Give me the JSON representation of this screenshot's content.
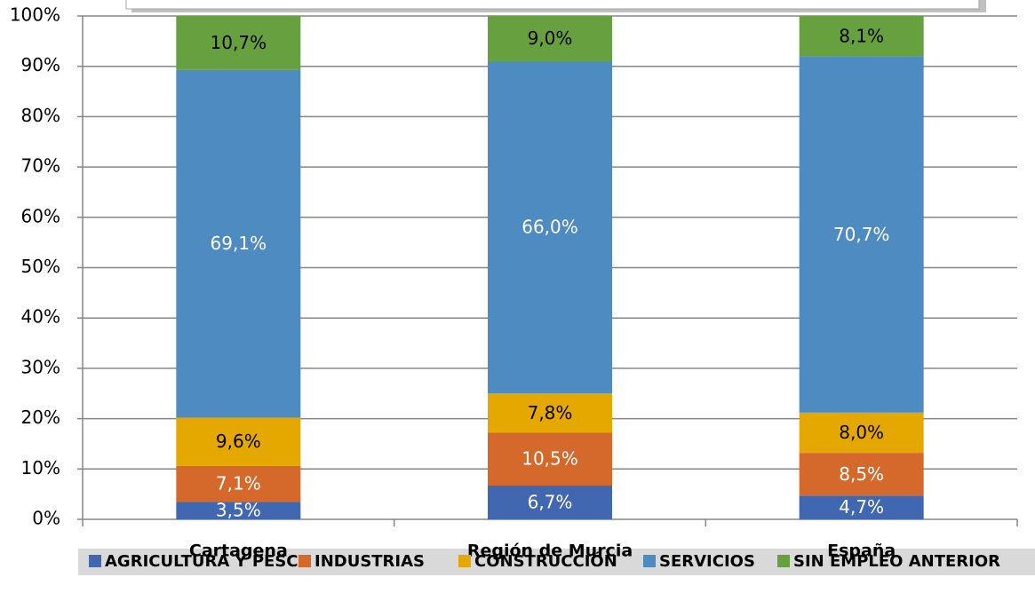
{
  "chart_data": {
    "type": "stacked_bar",
    "categories": [
      "Cartagena",
      "Región de Murcia",
      "España"
    ],
    "series": [
      {
        "name": "AGRICULTURA Y PESCA",
        "color": "#4267b1",
        "label_color": "#ffffff",
        "values": [
          3.5,
          6.7,
          4.7
        ],
        "value_labels": [
          "3,5%",
          "6,7%",
          "4,7%"
        ]
      },
      {
        "name": "INDUSTRIAS",
        "color": "#d4692b",
        "label_color": "#ffffff",
        "values": [
          7.1,
          10.5,
          8.5
        ],
        "value_labels": [
          "7,1%",
          "10,5%",
          "8,5%"
        ]
      },
      {
        "name": "CONSTRUCCIÓN",
        "color": "#e5a800",
        "label_color": "#000000",
        "values": [
          9.6,
          7.8,
          8.0
        ],
        "value_labels": [
          "9,6%",
          "7,8%",
          "8,0%"
        ]
      },
      {
        "name": "SERVICIOS",
        "color": "#4e8bc0",
        "label_color": "#ffffff",
        "values": [
          69.1,
          66.0,
          70.7
        ],
        "value_labels": [
          "69,1%",
          "66,0%",
          "70,7%"
        ]
      },
      {
        "name": "SIN EMPLEO ANTERIOR",
        "color": "#67a03e",
        "label_color": "#000000",
        "values": [
          10.7,
          9.0,
          8.1
        ],
        "value_labels": [
          "10,7%",
          "9,0%",
          "8,1%"
        ]
      }
    ],
    "ylim": [
      0,
      100
    ],
    "yticks": [
      {
        "value": 0,
        "label": "0%"
      },
      {
        "value": 10,
        "label": "10%"
      },
      {
        "value": 20,
        "label": "20%"
      },
      {
        "value": 30,
        "label": "30%"
      },
      {
        "value": 40,
        "label": "40%"
      },
      {
        "value": 50,
        "label": "50%"
      },
      {
        "value": 60,
        "label": "60%"
      },
      {
        "value": 70,
        "label": "70%"
      },
      {
        "value": 80,
        "label": "80%"
      },
      {
        "value": 90,
        "label": "90%"
      },
      {
        "value": 100,
        "label": "100%"
      }
    ],
    "grid": true,
    "legend": "bottom"
  }
}
